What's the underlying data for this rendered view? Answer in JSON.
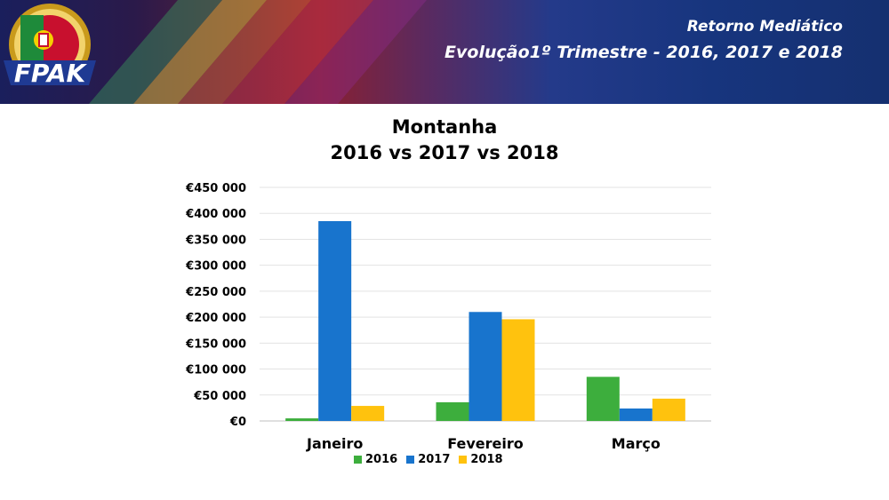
{
  "header": {
    "logo_text": "FPAK",
    "title_line1": "Retorno Mediático",
    "title_line2": "Evolução1º Trimestre - 2016, 2017 e 2018"
  },
  "chart_data": {
    "type": "bar",
    "title": "Montanha",
    "subtitle": "2016 vs 2017 vs 2018",
    "xlabel": "",
    "ylabel": "",
    "categories": [
      "Janeiro",
      "Fevereiro",
      "Março"
    ],
    "series": [
      {
        "name": "2016",
        "color": "#3dae3d",
        "values": [
          5000,
          36000,
          85000
        ]
      },
      {
        "name": "2017",
        "color": "#1874cd",
        "values": [
          385000,
          210000,
          24000
        ]
      },
      {
        "name": "2018",
        "color": "#ffc20e",
        "values": [
          29000,
          196000,
          43000
        ]
      }
    ],
    "ylim": [
      0,
      450000
    ],
    "yticks": [
      "€0",
      "€50 000",
      "€100 000",
      "€150 000",
      "€200 000",
      "€250 000",
      "€300 000",
      "€350 000",
      "€400 000",
      "€450 000"
    ],
    "grid": true,
    "legend_position": "bottom"
  }
}
